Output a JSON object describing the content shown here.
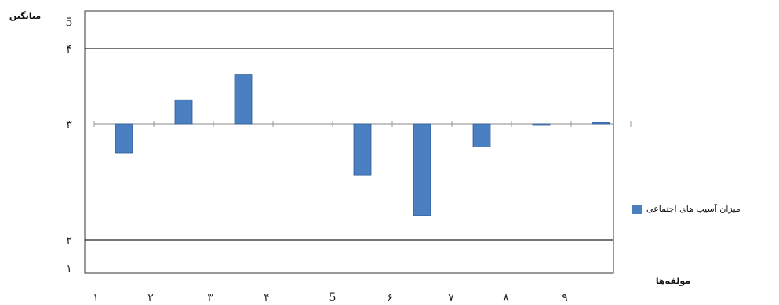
{
  "chart_data": {
    "type": "bar",
    "ylabel": "میانگین",
    "xlabel": "مولفه‌ها",
    "categories": [
      "۱",
      "۲",
      "۳",
      "۴",
      "5",
      "۶",
      "۷",
      "۸",
      "۹"
    ],
    "series": [
      {
        "name": "میزان آسیب های اجتماعی",
        "color": "#4a7fc1",
        "values": [
          2.75,
          3.32,
          3.65,
          null,
          2.56,
          2.21,
          2.8,
          3.0,
          3.02
        ]
      }
    ],
    "baseline": 3,
    "ylim": [
      1,
      5
    ],
    "y_ticks": [
      "۱",
      "۲",
      "۳",
      "۴",
      "5"
    ],
    "reference_lines": [
      2,
      4
    ],
    "grid": false,
    "legend_position": "right"
  }
}
